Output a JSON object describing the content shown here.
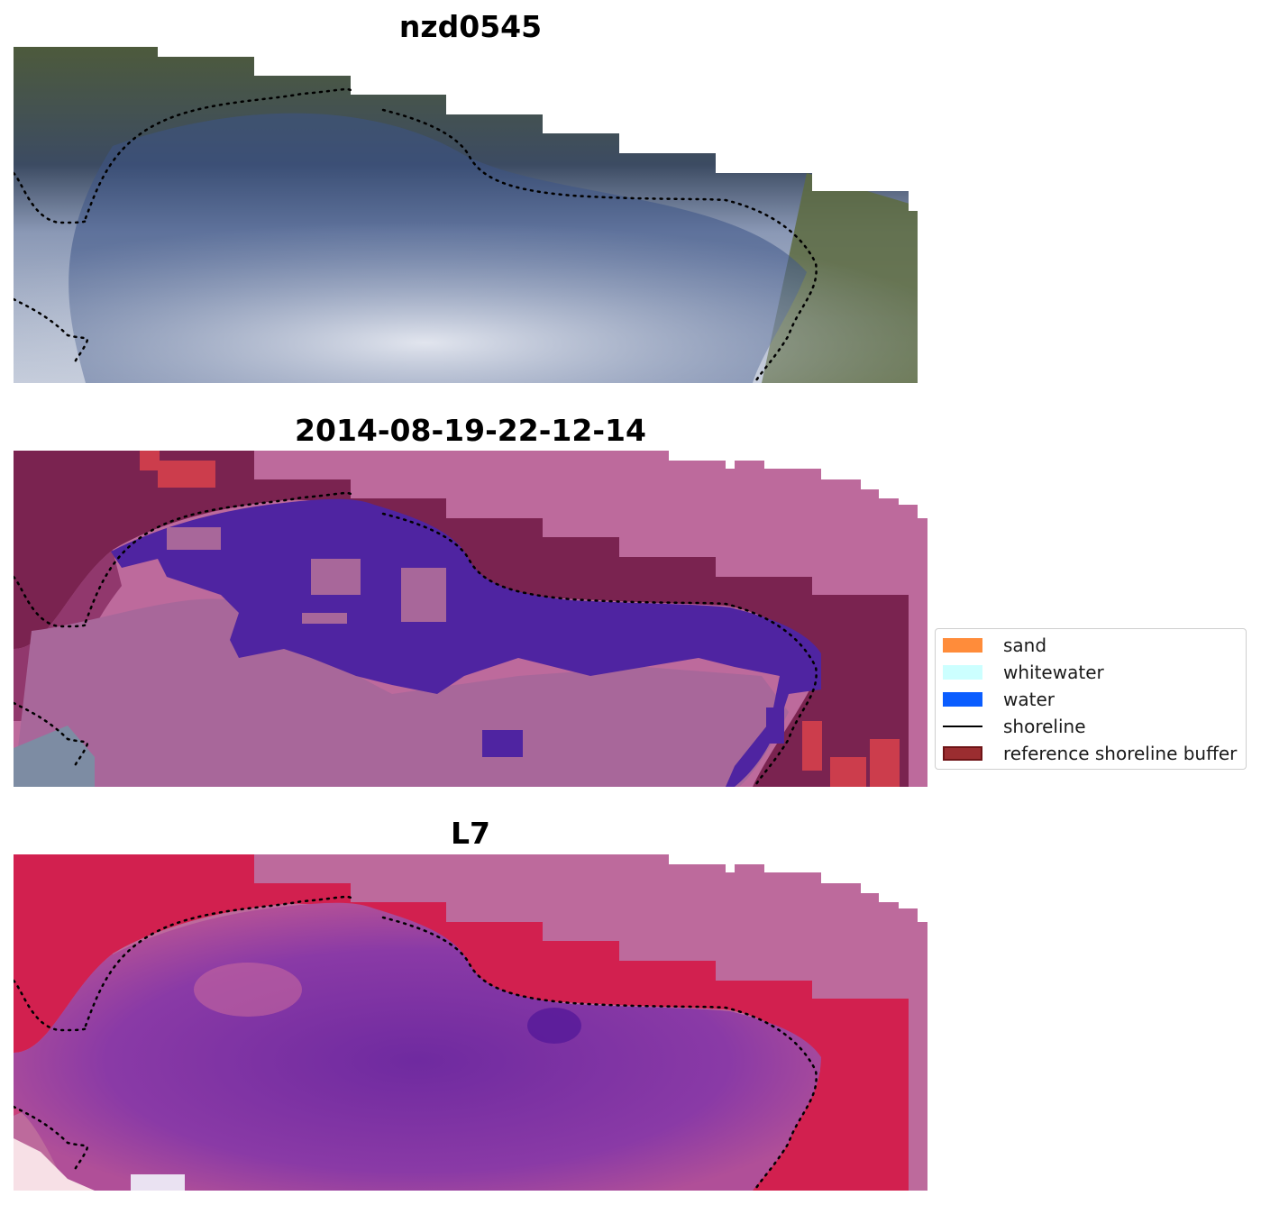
{
  "panels": [
    {
      "title": "nzd0545"
    },
    {
      "title": "2014-08-19-22-12-14"
    },
    {
      "title": "L7"
    }
  ],
  "legend": {
    "items": [
      {
        "label": "sand",
        "kind": "patch",
        "color": "#ff8c3a",
        "edge": "#ff8c3a"
      },
      {
        "label": "whitewater",
        "kind": "patch",
        "color": "#ccffff",
        "edge": "#ccffff"
      },
      {
        "label": "water",
        "kind": "patch",
        "color": "#0a5dff",
        "edge": "#0a5dff"
      },
      {
        "label": "shoreline",
        "kind": "line",
        "color": "#000000"
      },
      {
        "label": "reference shoreline buffer",
        "kind": "patch",
        "color": "#9b2d30",
        "edge": "#6e1416"
      }
    ]
  },
  "colors": {
    "rgb_vegetation": "#4d5a3c",
    "rgb_water": "#34476a",
    "rgb_whitewater": "#c9d0de",
    "class_background": "#bd6a9c",
    "class_land": "#7a2350",
    "class_water_detected": "#4f24a1",
    "class_sand_like": "#a8679a",
    "class_buffer_red": "#cc3d4c",
    "mndwi_land": "#d2204f",
    "mndwi_water": "#7a2fa3",
    "mndwi_mid": "#c060a8",
    "shoreline_dots": "#000000"
  }
}
